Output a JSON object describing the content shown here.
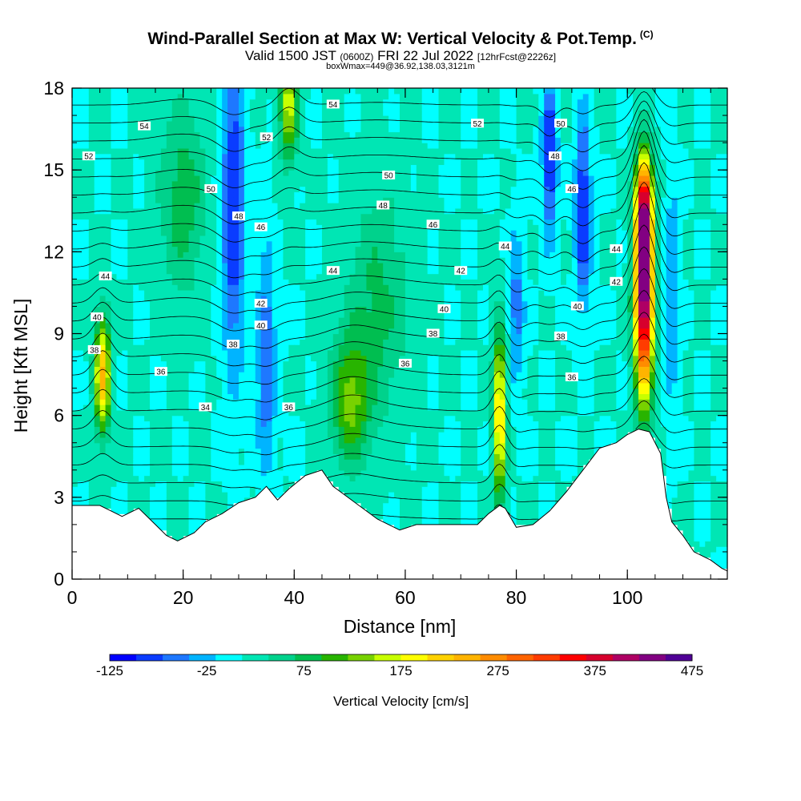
{
  "header": {
    "title": "Wind-Parallel Section at Max W: Vertical Velocity & Pot.Temp.",
    "copyright": "(C)",
    "valid_prefix": "Valid 1500 JST",
    "valid_utc": "(0600Z)",
    "valid_date": "FRI 22 Jul 2022",
    "forecast": "[12hrFcst@2226z]",
    "box_info": "boxWmax=449@36.92,138.03,3121m"
  },
  "chart_data": {
    "type": "heatmap",
    "xlabel": "Distance [nm]",
    "ylabel": "Height [Kft MSL]",
    "xlim": [
      0,
      118
    ],
    "ylim": [
      0,
      18
    ],
    "x_ticks": [
      0,
      20,
      40,
      60,
      80,
      100
    ],
    "y_ticks": [
      0,
      3,
      6,
      9,
      12,
      15,
      18
    ],
    "colorbar": {
      "label": "Vertical Velocity [cm/s]",
      "tick_labels": [
        -125,
        -25,
        75,
        175,
        275,
        375,
        475
      ],
      "colors": [
        "#0000ff",
        "#0a3cff",
        "#1e78ff",
        "#00b4ff",
        "#00ffff",
        "#00e6b4",
        "#00d28c",
        "#00be50",
        "#28b400",
        "#78d200",
        "#c8ff00",
        "#ffff00",
        "#ffd200",
        "#ffb400",
        "#ff8c00",
        "#ff6400",
        "#ff3c00",
        "#ff0000",
        "#d7002d",
        "#af0064",
        "#820082",
        "#500096"
      ]
    },
    "terrain_kft": [
      [
        0,
        2.7
      ],
      [
        5,
        2.7
      ],
      [
        9,
        2.3
      ],
      [
        12,
        2.6
      ],
      [
        15,
        2.0
      ],
      [
        17,
        1.6
      ],
      [
        19,
        1.4
      ],
      [
        22,
        1.7
      ],
      [
        24,
        2.1
      ],
      [
        27,
        2.4
      ],
      [
        30,
        2.8
      ],
      [
        33,
        3.0
      ],
      [
        35,
        3.4
      ],
      [
        37,
        2.9
      ],
      [
        39,
        3.3
      ],
      [
        42,
        3.8
      ],
      [
        45,
        4.0
      ],
      [
        47,
        3.4
      ],
      [
        51,
        2.8
      ],
      [
        55,
        2.2
      ],
      [
        59,
        1.8
      ],
      [
        62,
        2.0
      ],
      [
        70,
        2.0
      ],
      [
        73,
        2.0
      ],
      [
        75,
        2.4
      ],
      [
        77,
        2.7
      ],
      [
        78,
        2.6
      ],
      [
        80,
        1.9
      ],
      [
        83,
        2.0
      ],
      [
        86,
        2.5
      ],
      [
        89,
        3.2
      ],
      [
        92,
        4.0
      ],
      [
        95,
        4.8
      ],
      [
        98,
        5.0
      ],
      [
        100,
        5.3
      ],
      [
        102,
        5.5
      ],
      [
        104,
        5.4
      ],
      [
        106,
        4.6
      ],
      [
        107,
        3.0
      ],
      [
        108,
        2.1
      ],
      [
        110,
        1.6
      ],
      [
        112,
        1.0
      ],
      [
        115,
        0.7
      ],
      [
        117,
        0.4
      ],
      [
        118,
        0.3
      ]
    ],
    "updrafts": [
      {
        "x": 5.5,
        "y": 7.5,
        "sx": 1.0,
        "sy": 1.5,
        "w": 220
      },
      {
        "x": 77,
        "y": 6.0,
        "sx": 0.8,
        "sy": 2.2,
        "w": 210
      },
      {
        "x": 103,
        "y": 10.5,
        "sx": 1.2,
        "sy": 2.6,
        "w": 449
      },
      {
        "x": 103,
        "y": 13.8,
        "sx": 1.0,
        "sy": 1.2,
        "w": 240
      },
      {
        "x": 39,
        "y": 17.5,
        "sx": 1.2,
        "sy": 1.5,
        "w": 150
      },
      {
        "x": 50,
        "y": 6.5,
        "sx": 2.5,
        "sy": 1.6,
        "w": 110
      },
      {
        "x": 20,
        "y": 14.0,
        "sx": 3.0,
        "sy": 2.5,
        "w": 70
      },
      {
        "x": 55,
        "y": 10.0,
        "sx": 4.0,
        "sy": 3.0,
        "w": 60
      }
    ],
    "downdrafts": [
      {
        "x": 29,
        "y": 13.5,
        "sx": 1.5,
        "sy": 4.0,
        "w": -110
      },
      {
        "x": 35,
        "y": 8.0,
        "sx": 1.2,
        "sy": 3.0,
        "w": -80
      },
      {
        "x": 86,
        "y": 15.5,
        "sx": 0.9,
        "sy": 2.0,
        "w": -125
      },
      {
        "x": 92,
        "y": 13.5,
        "sx": 1.0,
        "sy": 2.5,
        "w": -115
      },
      {
        "x": 80,
        "y": 10.0,
        "sx": 1.0,
        "sy": 2.0,
        "w": -70
      },
      {
        "x": 108,
        "y": 10.5,
        "sx": 1.0,
        "sy": 3.0,
        "w": -60
      }
    ],
    "theta_contour_levels": [
      32,
      33,
      34,
      35,
      36,
      37,
      38,
      39,
      40,
      41,
      42,
      43,
      44,
      45,
      46,
      47,
      48,
      49,
      50,
      51,
      52,
      53,
      54,
      55
    ],
    "contour_labels": [
      {
        "text": "54",
        "x": 13,
        "y": 16.6
      },
      {
        "text": "52",
        "x": 3,
        "y": 15.5
      },
      {
        "text": "54",
        "x": 47,
        "y": 17.4
      },
      {
        "text": "52",
        "x": 35,
        "y": 16.2
      },
      {
        "text": "52",
        "x": 73,
        "y": 16.7
      },
      {
        "text": "50",
        "x": 88,
        "y": 16.7
      },
      {
        "text": "50",
        "x": 25,
        "y": 14.3
      },
      {
        "text": "50",
        "x": 57,
        "y": 14.8
      },
      {
        "text": "48",
        "x": 87,
        "y": 15.5
      },
      {
        "text": "46",
        "x": 90,
        "y": 14.3
      },
      {
        "text": "48",
        "x": 30,
        "y": 13.3
      },
      {
        "text": "48",
        "x": 56,
        "y": 13.7
      },
      {
        "text": "46",
        "x": 34,
        "y": 12.9
      },
      {
        "text": "46",
        "x": 65,
        "y": 13.0
      },
      {
        "text": "44",
        "x": 78,
        "y": 12.2
      },
      {
        "text": "44",
        "x": 98,
        "y": 12.1
      },
      {
        "text": "44",
        "x": 6,
        "y": 11.1
      },
      {
        "text": "44",
        "x": 47,
        "y": 11.3
      },
      {
        "text": "42",
        "x": 70,
        "y": 11.3
      },
      {
        "text": "42",
        "x": 98,
        "y": 10.9
      },
      {
        "text": "42",
        "x": 34,
        "y": 10.1
      },
      {
        "text": "40",
        "x": 67,
        "y": 9.9
      },
      {
        "text": "40",
        "x": 91,
        "y": 10.0
      },
      {
        "text": "40",
        "x": 4.5,
        "y": 9.6
      },
      {
        "text": "40",
        "x": 34,
        "y": 9.3
      },
      {
        "text": "38",
        "x": 65,
        "y": 9.0
      },
      {
        "text": "38",
        "x": 88,
        "y": 8.9
      },
      {
        "text": "38",
        "x": 4,
        "y": 8.4
      },
      {
        "text": "38",
        "x": 29,
        "y": 8.6
      },
      {
        "text": "36",
        "x": 60,
        "y": 7.9
      },
      {
        "text": "36",
        "x": 16,
        "y": 7.6
      },
      {
        "text": "36",
        "x": 90,
        "y": 7.4
      },
      {
        "text": "34",
        "x": 24,
        "y": 6.3
      },
      {
        "text": "36",
        "x": 39,
        "y": 6.3
      }
    ]
  }
}
